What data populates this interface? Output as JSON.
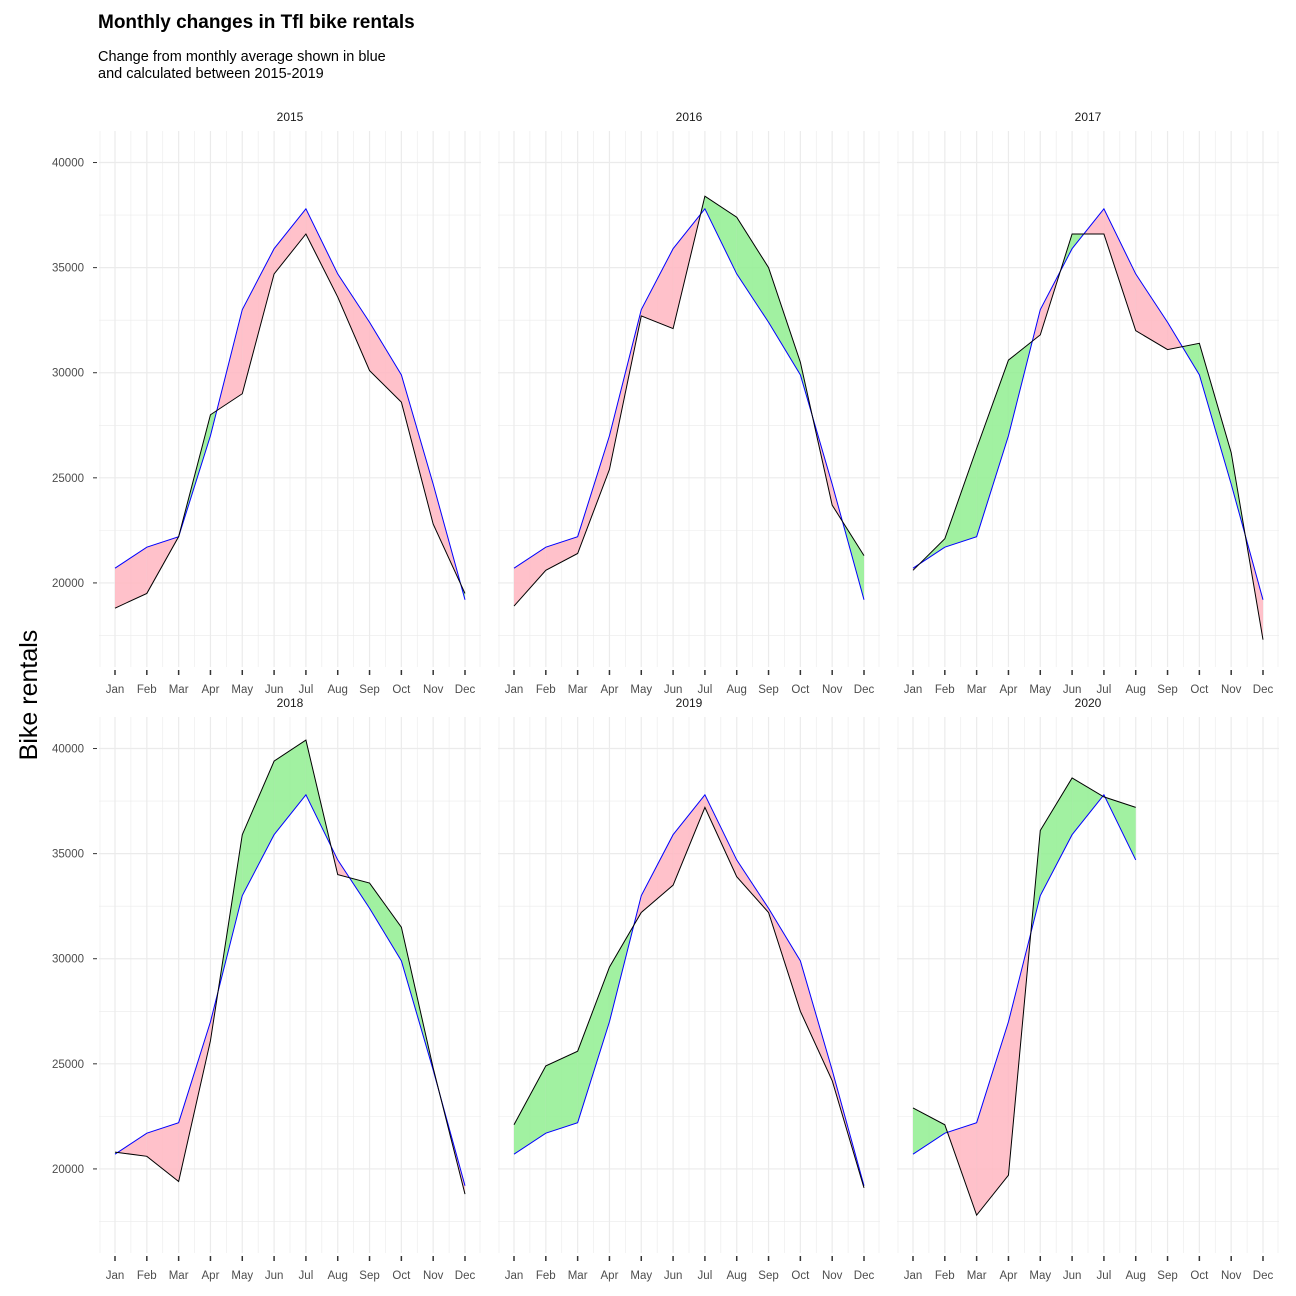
{
  "chart_data": {
    "type": "area",
    "title": "Monthly changes in Tfl bike rentals",
    "subtitle_lines": [
      "Change from monthly average shown in blue",
      "and calculated between 2015-2019"
    ],
    "ylabel": "Bike rentals",
    "xlabel": "",
    "ylim": [
      16000,
      41500
    ],
    "y_ticks": [
      20000,
      25000,
      30000,
      35000,
      40000
    ],
    "categories": [
      "Jan",
      "Feb",
      "Mar",
      "Apr",
      "May",
      "Jun",
      "Jul",
      "Aug",
      "Sep",
      "Oct",
      "Nov",
      "Dec"
    ],
    "average": [
      20700,
      21700,
      22200,
      27000,
      33000,
      35900,
      37800,
      34700,
      32400,
      29900,
      24700,
      19200
    ],
    "series": [
      {
        "name": "2015",
        "values": [
          18800,
          19500,
          22200,
          28000,
          29000,
          34700,
          36600,
          33600,
          30100,
          28600,
          22800,
          19500
        ]
      },
      {
        "name": "2016",
        "values": [
          18900,
          20600,
          21400,
          25400,
          32700,
          32100,
          38400,
          37400,
          35000,
          30500,
          23700,
          21300
        ]
      },
      {
        "name": "2017",
        "values": [
          20600,
          22100,
          26400,
          30600,
          31800,
          36600,
          36600,
          32000,
          31100,
          31400,
          26200,
          17300
        ]
      },
      {
        "name": "2018",
        "values": [
          20800,
          20600,
          19400,
          26100,
          35900,
          39400,
          40400,
          34000,
          33600,
          31500,
          24800,
          18800
        ]
      },
      {
        "name": "2019",
        "values": [
          22100,
          24900,
          25600,
          29600,
          32200,
          33500,
          37200,
          33900,
          32200,
          27500,
          24200,
          19100
        ]
      },
      {
        "name": "2020",
        "values": [
          22900,
          22100,
          17800,
          19700,
          36100,
          38600,
          37700,
          37200,
          null,
          null,
          null,
          null
        ]
      }
    ],
    "colors": {
      "average_line": "#0000ff",
      "actual_line": "#000000",
      "above_fill": "#90ee90",
      "below_fill": "#ffb6c1",
      "grid": "#ebebeb"
    },
    "grid": true,
    "legend": "none"
  }
}
